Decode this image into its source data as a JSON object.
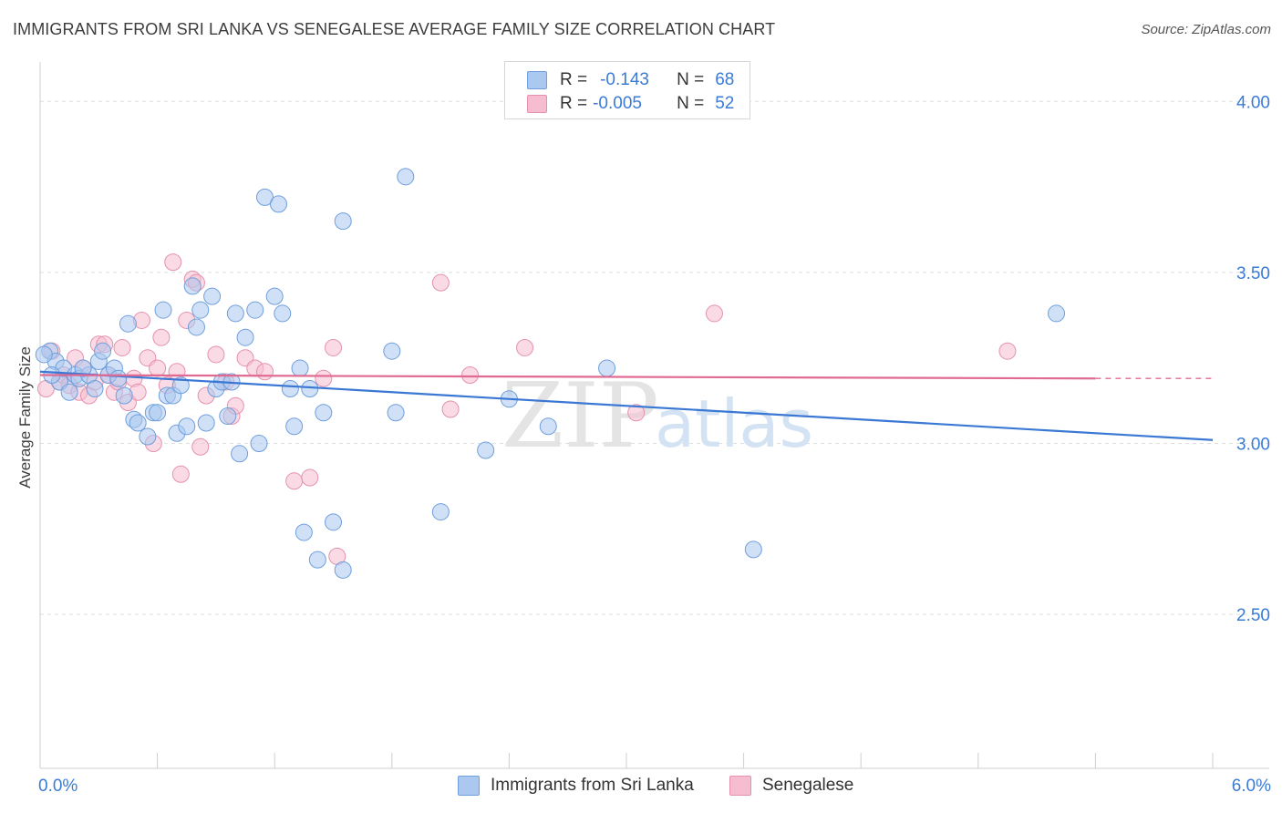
{
  "header": {
    "title": "IMMIGRANTS FROM SRI LANKA VS SENEGALESE AVERAGE FAMILY SIZE CORRELATION CHART",
    "source": "Source: ZipAtlas.com"
  },
  "watermark": {
    "zip": "ZIP",
    "atlas": "atlas"
  },
  "legend": {
    "rows": [
      {
        "r_label": "R =",
        "r_value": "-0.143",
        "n_label": "N =",
        "n_value": "68"
      },
      {
        "r_label": "R =",
        "r_value": "-0.005",
        "n_label": "N =",
        "n_value": "52"
      }
    ]
  },
  "bottom_legend": {
    "series_a": "Immigrants from Sri Lanka",
    "series_b": "Senegalese"
  },
  "x_axis": {
    "min_label": "0.0%",
    "max_label": "6.0%"
  },
  "colors": {
    "blue_fill": "#aac8f0",
    "blue_stroke": "#6f9fdc",
    "blue_line": "#3a78d4",
    "pink_fill": "#f6bdd0",
    "pink_stroke": "#e591ae",
    "pink_line": "#e06a92",
    "grid": "#dedede",
    "axis_text": "#3a7bd5"
  },
  "chart_data": {
    "type": "scatter",
    "title": "IMMIGRANTS FROM SRI LANKA VS SENEGALESE AVERAGE FAMILY SIZE CORRELATION CHART",
    "xlabel": "",
    "ylabel": "Average Family Size",
    "xlim": [
      0,
      6
    ],
    "ylim": [
      2.05,
      4.15
    ],
    "y_ticks": [
      2.5,
      3.0,
      3.5,
      4.0
    ],
    "y_tick_labels": [
      "2.50",
      "3.00",
      "3.50",
      "4.00"
    ],
    "x_tick_values": [
      0,
      0.6,
      1.2,
      1.8,
      2.4,
      3.0,
      3.6,
      4.2,
      4.8,
      5.4,
      6.0
    ],
    "series": [
      {
        "name": "Immigrants from Sri Lanka",
        "r": -0.143,
        "n": 68,
        "trend": {
          "x0": 0.0,
          "y0": 3.21,
          "x1": 6.0,
          "y1": 3.01
        },
        "points": [
          [
            0.05,
            3.27
          ],
          [
            0.08,
            3.24
          ],
          [
            0.1,
            3.18
          ],
          [
            0.12,
            3.22
          ],
          [
            0.15,
            3.15
          ],
          [
            0.18,
            3.2
          ],
          [
            0.2,
            3.19
          ],
          [
            0.25,
            3.2
          ],
          [
            0.28,
            3.16
          ],
          [
            0.3,
            3.24
          ],
          [
            0.32,
            3.27
          ],
          [
            0.35,
            3.2
          ],
          [
            0.38,
            3.22
          ],
          [
            0.4,
            3.19
          ],
          [
            0.43,
            3.14
          ],
          [
            0.45,
            3.35
          ],
          [
            0.48,
            3.07
          ],
          [
            0.5,
            3.06
          ],
          [
            0.55,
            3.02
          ],
          [
            0.58,
            3.09
          ],
          [
            0.6,
            3.09
          ],
          [
            0.63,
            3.39
          ],
          [
            0.65,
            3.14
          ],
          [
            0.68,
            3.14
          ],
          [
            0.7,
            3.03
          ],
          [
            0.72,
            3.17
          ],
          [
            0.75,
            3.05
          ],
          [
            0.78,
            3.46
          ],
          [
            0.8,
            3.34
          ],
          [
            0.82,
            3.39
          ],
          [
            0.85,
            3.06
          ],
          [
            0.88,
            3.43
          ],
          [
            0.9,
            3.16
          ],
          [
            0.93,
            3.18
          ],
          [
            0.96,
            3.08
          ],
          [
            0.98,
            3.18
          ],
          [
            1.0,
            3.38
          ],
          [
            1.02,
            2.97
          ],
          [
            1.05,
            3.31
          ],
          [
            1.1,
            3.39
          ],
          [
            1.12,
            3.0
          ],
          [
            1.15,
            3.72
          ],
          [
            1.2,
            3.43
          ],
          [
            1.22,
            3.7
          ],
          [
            1.24,
            3.38
          ],
          [
            1.28,
            3.16
          ],
          [
            1.3,
            3.05
          ],
          [
            1.33,
            3.22
          ],
          [
            1.35,
            2.74
          ],
          [
            1.38,
            3.16
          ],
          [
            1.42,
            2.66
          ],
          [
            1.45,
            3.09
          ],
          [
            1.5,
            2.77
          ],
          [
            1.55,
            2.63
          ],
          [
            1.55,
            3.65
          ],
          [
            1.8,
            3.27
          ],
          [
            1.82,
            3.09
          ],
          [
            1.87,
            3.78
          ],
          [
            2.05,
            2.8
          ],
          [
            2.28,
            2.98
          ],
          [
            2.4,
            3.13
          ],
          [
            2.6,
            3.05
          ],
          [
            2.9,
            3.22
          ],
          [
            3.65,
            2.69
          ],
          [
            5.2,
            3.38
          ],
          [
            0.22,
            3.22
          ],
          [
            0.02,
            3.26
          ],
          [
            0.06,
            3.2
          ]
        ]
      },
      {
        "name": "Senegalese",
        "r": -0.005,
        "n": 52,
        "trend": {
          "x0": 0.0,
          "y0": 3.2,
          "x1": 5.4,
          "y1": 3.19
        },
        "trend_dash": {
          "x0": 5.4,
          "y0": 3.19,
          "x1": 6.0,
          "y1": 3.19
        },
        "points": [
          [
            0.03,
            3.16
          ],
          [
            0.06,
            3.27
          ],
          [
            0.1,
            3.18
          ],
          [
            0.12,
            3.2
          ],
          [
            0.15,
            3.17
          ],
          [
            0.18,
            3.25
          ],
          [
            0.2,
            3.15
          ],
          [
            0.22,
            3.22
          ],
          [
            0.25,
            3.14
          ],
          [
            0.28,
            3.18
          ],
          [
            0.3,
            3.29
          ],
          [
            0.33,
            3.29
          ],
          [
            0.35,
            3.2
          ],
          [
            0.38,
            3.15
          ],
          [
            0.4,
            3.18
          ],
          [
            0.42,
            3.28
          ],
          [
            0.45,
            3.12
          ],
          [
            0.48,
            3.19
          ],
          [
            0.5,
            3.15
          ],
          [
            0.52,
            3.36
          ],
          [
            0.55,
            3.25
          ],
          [
            0.58,
            3.0
          ],
          [
            0.6,
            3.22
          ],
          [
            0.62,
            3.31
          ],
          [
            0.65,
            3.17
          ],
          [
            0.68,
            3.53
          ],
          [
            0.7,
            3.21
          ],
          [
            0.72,
            2.91
          ],
          [
            0.75,
            3.36
          ],
          [
            0.78,
            3.48
          ],
          [
            0.8,
            3.47
          ],
          [
            0.82,
            2.99
          ],
          [
            0.85,
            3.14
          ],
          [
            0.9,
            3.26
          ],
          [
            0.95,
            3.18
          ],
          [
            0.98,
            3.08
          ],
          [
            1.0,
            3.11
          ],
          [
            1.05,
            3.25
          ],
          [
            1.1,
            3.22
          ],
          [
            1.15,
            3.21
          ],
          [
            1.3,
            2.89
          ],
          [
            1.38,
            2.9
          ],
          [
            1.45,
            3.19
          ],
          [
            1.5,
            3.28
          ],
          [
            1.52,
            2.67
          ],
          [
            2.05,
            3.47
          ],
          [
            2.1,
            3.1
          ],
          [
            2.2,
            3.2
          ],
          [
            2.48,
            3.28
          ],
          [
            3.05,
            3.09
          ],
          [
            3.45,
            3.38
          ],
          [
            4.95,
            3.27
          ]
        ]
      }
    ]
  }
}
